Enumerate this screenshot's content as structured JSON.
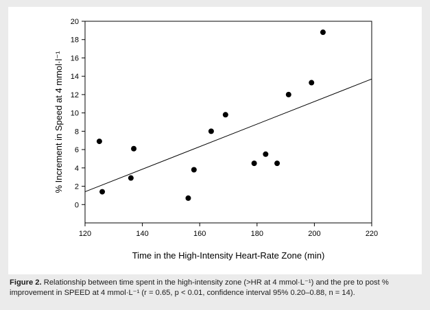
{
  "chart_data": {
    "type": "scatter",
    "title": "",
    "xlabel": "Time in the High-Intensity Heart-Rate Zone (min)",
    "ylabel": "% Increment in Speed at 4 mmol·l⁻¹",
    "xlim": [
      120,
      220
    ],
    "ylim": [
      -2,
      20
    ],
    "xticks": [
      120,
      140,
      160,
      180,
      200,
      220
    ],
    "yticks": [
      0,
      2,
      4,
      6,
      8,
      10,
      12,
      14,
      16,
      18,
      20
    ],
    "grid": false,
    "legend": "none",
    "series": [
      {
        "x": [
          125,
          126,
          136,
          137,
          156,
          158,
          164,
          169,
          179,
          183,
          187,
          191,
          199,
          203
        ],
        "y": [
          6.9,
          1.4,
          2.9,
          6.1,
          0.7,
          3.8,
          8.0,
          9.8,
          4.5,
          5.5,
          4.5,
          12.0,
          13.3,
          18.8
        ]
      }
    ],
    "regression_line": {
      "x": [
        120,
        220
      ],
      "y": [
        1.4,
        13.7
      ]
    },
    "marker_color": "#000000",
    "line_color": "#000000"
  },
  "caption": {
    "label": "Figure 2.",
    "text": " Relationship between time spent in the high-intensity zone (>HR at 4 mmol·L⁻¹) and the pre to post % improvement in SPEED at 4 mmol·L⁻¹ (r = 0.65, p < 0.01, confidence interval 95% 0.20–0.88, n = 14)."
  }
}
